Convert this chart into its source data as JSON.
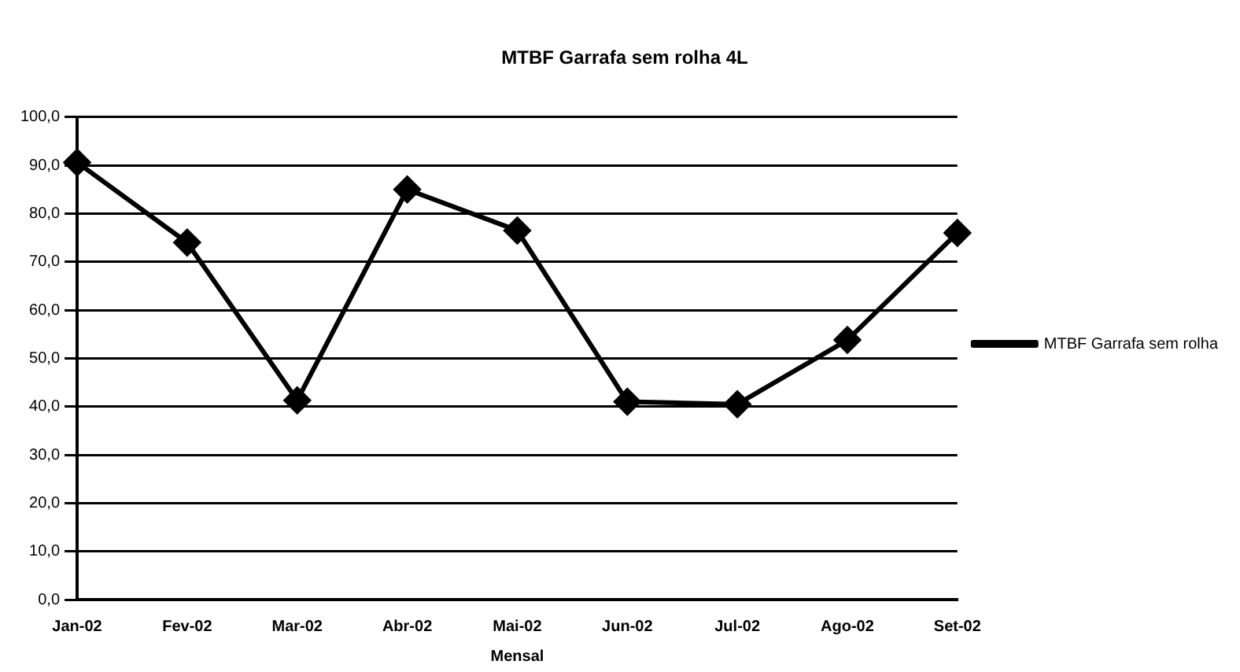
{
  "chart_data": {
    "type": "line",
    "title": "MTBF Garrafa sem rolha 4L",
    "xlabel": "Mensal",
    "categories": [
      "Jan-02",
      "Fev-02",
      "Mar-02",
      "Abr-02",
      "Mai-02",
      "Jun-02",
      "Jul-02",
      "Ago-02",
      "Set-02"
    ],
    "series": [
      {
        "name": "MTBF Garrafa sem rolha",
        "color": "#000000",
        "values": [
          90.6,
          74,
          41.3,
          85,
          76.5,
          41,
          40.5,
          53.8,
          76
        ]
      }
    ],
    "ylim": [
      0,
      100
    ],
    "yticks": [
      {
        "value": 0,
        "label": "0,0"
      },
      {
        "value": 10,
        "label": "10,0"
      },
      {
        "value": 20,
        "label": "20,0"
      },
      {
        "value": 30,
        "label": "30,0"
      },
      {
        "value": 40,
        "label": "40,0"
      },
      {
        "value": 50,
        "label": "50,0"
      },
      {
        "value": 60,
        "label": "60,0"
      },
      {
        "value": 70,
        "label": "70,0"
      },
      {
        "value": 80,
        "label": "80,0"
      },
      {
        "value": 90,
        "label": "90,0"
      },
      {
        "value": 100,
        "label": "100,0"
      }
    ],
    "grid": "y",
    "legend": "right",
    "marker": "diamond",
    "line_style": "solid"
  }
}
